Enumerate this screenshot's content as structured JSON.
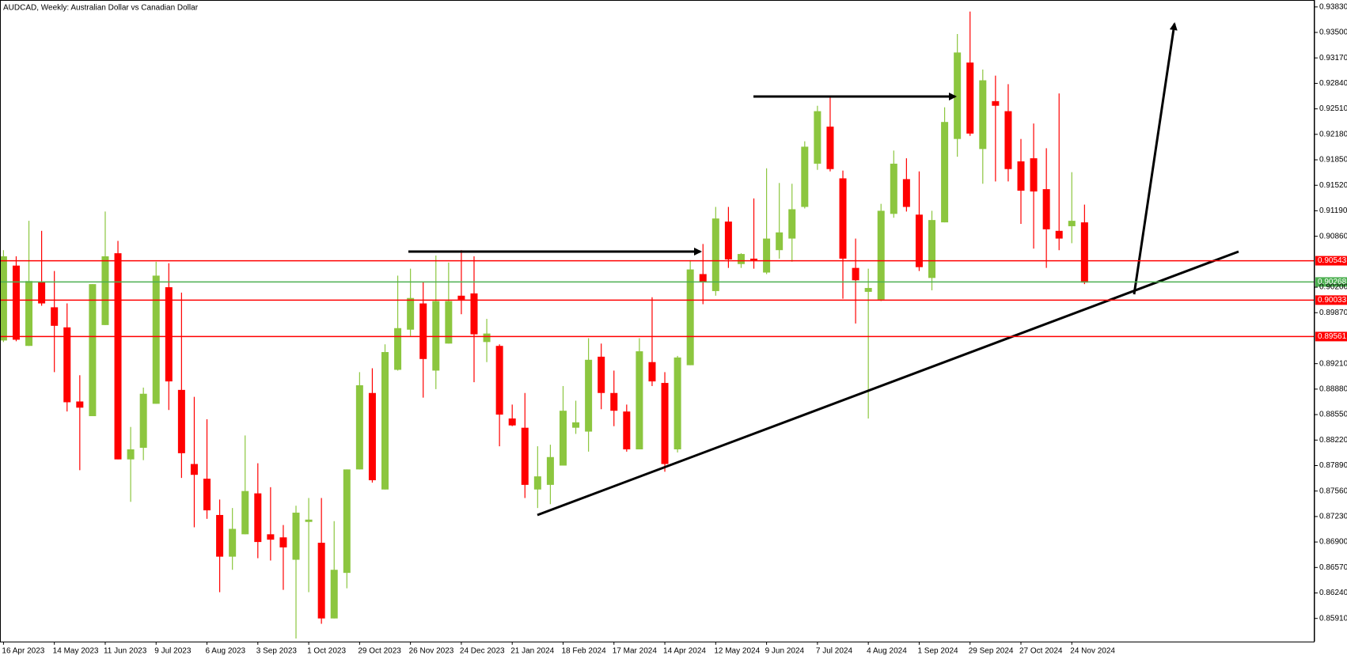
{
  "chart_data": {
    "type": "candlestick",
    "title": "AUDCAD, Weekly:  Australian Dollar vs Canadian Dollar",
    "categories": [
      "16 Apr 2023",
      null,
      null,
      null,
      "14 May 2023",
      null,
      null,
      null,
      "11 Jun 2023",
      null,
      null,
      null,
      "9 Jul 2023",
      null,
      null,
      null,
      "6 Aug 2023",
      null,
      null,
      null,
      "3 Sep 2023",
      null,
      null,
      null,
      "1 Oct 2023",
      null,
      null,
      null,
      "29 Oct 2023",
      null,
      null,
      null,
      "26 Nov 2023",
      null,
      null,
      null,
      "24 Dec 2023",
      null,
      null,
      null,
      "21 Jan 2024",
      null,
      null,
      null,
      "18 Feb 2024",
      null,
      null,
      null,
      "17 Mar 2024",
      null,
      null,
      null,
      "14 Apr 2024",
      null,
      null,
      null,
      "12 May 2024",
      null,
      null,
      null,
      "9 Jun 2024",
      null,
      null,
      null,
      "7 Jul 2024",
      null,
      null,
      null,
      "4 Aug 2024",
      null,
      null,
      null,
      "1 Sep 2024",
      null,
      null,
      null,
      "29 Sep 2024",
      null,
      null,
      null,
      "27 Oct 2024",
      null,
      null,
      null,
      "24 Nov 2024",
      null
    ],
    "open": [
      0.8951,
      0.9048,
      0.8944,
      0.9027,
      0.8994,
      0.8968,
      0.8872,
      0.8853,
      0.8971,
      0.9064,
      0.8797,
      0.8812,
      0.8869,
      0.902,
      0.8887,
      0.8791,
      0.8772,
      0.8725,
      0.8671,
      0.87,
      0.8753,
      0.87,
      0.8696,
      0.8667,
      0.8716,
      0.8689,
      0.8591,
      0.865,
      0.8784,
      0.8883,
      0.8758,
      0.8913,
      0.8965,
      0.8999,
      0.8912,
      0.8947,
      0.9009,
      0.9012,
      0.8949,
      0.8944,
      0.885,
      0.8838,
      0.8758,
      0.8764,
      0.8789,
      0.8838,
      0.8833,
      0.893,
      0.8883,
      0.8859,
      0.881,
      0.8923,
      0.8896,
      0.881,
      0.8919,
      0.9037,
      0.9015,
      0.9105,
      0.905,
      0.9057,
      0.9039,
      0.9068,
      0.9083,
      0.9124,
      0.918,
      0.9228,
      0.9161,
      0.9045,
      0.9014,
      0.9004,
      0.9115,
      0.916,
      0.9114,
      0.9032,
      0.9104,
      0.9212,
      0.9311,
      0.9199,
      0.9261,
      0.9248,
      0.9183,
      0.9187,
      0.9147,
      0.9093,
      0.9099,
      0.9104
    ],
    "high": [
      0.9068,
      0.906,
      0.9106,
      0.9093,
      0.9041,
      0.8999,
      0.8906,
      0.9024,
      0.9118,
      0.908,
      0.8839,
      0.889,
      0.9053,
      0.9051,
      0.9013,
      0.8878,
      0.8849,
      0.8745,
      0.8734,
      0.8828,
      0.8792,
      0.8761,
      0.8712,
      0.8737,
      0.8747,
      0.8747,
      0.8717,
      0.8784,
      0.891,
      0.8915,
      0.8946,
      0.9035,
      0.9044,
      0.9027,
      0.9061,
      0.9052,
      0.9068,
      0.906,
      0.8979,
      0.8946,
      0.8868,
      0.8883,
      0.8814,
      0.8816,
      0.8892,
      0.8873,
      0.8954,
      0.8947,
      0.8912,
      0.8868,
      0.8954,
      0.9007,
      0.891,
      0.8931,
      0.9055,
      0.9076,
      0.9124,
      0.9124,
      0.9064,
      0.9135,
      0.9174,
      0.9155,
      0.9154,
      0.9209,
      0.9255,
      0.9267,
      0.9171,
      0.9083,
      0.9044,
      0.9128,
      0.9197,
      0.9187,
      0.917,
      0.9119,
      0.9253,
      0.9348,
      0.9377,
      0.9302,
      0.9294,
      0.9283,
      0.9212,
      0.9232,
      0.92,
      0.9271,
      0.9169,
      0.9127
    ],
    "low": [
      0.8949,
      0.895,
      0.8944,
      0.8996,
      0.891,
      0.8859,
      0.8783,
      0.8853,
      0.8971,
      0.8797,
      0.8742,
      0.8796,
      0.8869,
      0.8861,
      0.8773,
      0.8709,
      0.872,
      0.8625,
      0.8654,
      0.87,
      0.8669,
      0.8666,
      0.8628,
      0.8565,
      0.8625,
      0.8584,
      0.8591,
      0.863,
      0.8784,
      0.8767,
      0.8758,
      0.8912,
      0.8957,
      0.8877,
      0.8888,
      0.8947,
      0.8985,
      0.8897,
      0.8923,
      0.8814,
      0.884,
      0.8747,
      0.8734,
      0.8739,
      0.8789,
      0.883,
      0.8807,
      0.8862,
      0.884,
      0.8807,
      0.881,
      0.8892,
      0.8781,
      0.8806,
      0.8919,
      0.8998,
      0.9009,
      0.9045,
      0.9045,
      0.9044,
      0.9037,
      0.9057,
      0.9053,
      0.9122,
      0.9172,
      0.917,
      0.9005,
      0.8973,
      0.885,
      0.9002,
      0.911,
      0.9118,
      0.9041,
      0.9016,
      0.9104,
      0.9189,
      0.9216,
      0.9154,
      0.9157,
      0.9157,
      0.9102,
      0.907,
      0.9045,
      0.9068,
      0.9077,
      0.9024
    ],
    "close": [
      0.906,
      0.8952,
      0.9028,
      0.8999,
      0.897,
      0.8871,
      0.8864,
      0.9024,
      0.906,
      0.8797,
      0.881,
      0.8882,
      0.9035,
      0.8898,
      0.8805,
      0.8777,
      0.8731,
      0.8671,
      0.8707,
      0.8756,
      0.869,
      0.8693,
      0.8683,
      0.8728,
      0.8719,
      0.8591,
      0.8654,
      0.8784,
      0.8893,
      0.877,
      0.8936,
      0.8967,
      0.9006,
      0.8927,
      0.9002,
      0.9002,
      0.9004,
      0.8959,
      0.896,
      0.8855,
      0.8841,
      0.8764,
      0.8775,
      0.88,
      0.886,
      0.8845,
      0.8926,
      0.8883,
      0.886,
      0.881,
      0.8937,
      0.8898,
      0.8791,
      0.8929,
      0.9043,
      0.9027,
      0.9109,
      0.9056,
      0.9063,
      0.9055,
      0.9083,
      0.9091,
      0.9121,
      0.9202,
      0.9248,
      0.9173,
      0.9057,
      0.9029,
      0.9019,
      0.9119,
      0.918,
      0.9124,
      0.9046,
      0.9107,
      0.9234,
      0.9324,
      0.9219,
      0.9288,
      0.9255,
      0.9173,
      0.9145,
      0.9144,
      0.9095,
      0.9083,
      0.9106,
      0.9026
    ],
    "up_color": "#8cc63f",
    "down_color": "#ff0000",
    "ylim": [
      0.8561,
      0.9392
    ],
    "yticks": [
      {
        "value": 0.9383,
        "label": "0.93830"
      },
      {
        "value": 0.935,
        "label": "0.93500"
      },
      {
        "value": 0.9317,
        "label": "0.93170"
      },
      {
        "value": 0.9284,
        "label": "0.92840"
      },
      {
        "value": 0.9251,
        "label": "0.92510"
      },
      {
        "value": 0.9218,
        "label": "0.92180"
      },
      {
        "value": 0.9185,
        "label": "0.91850"
      },
      {
        "value": 0.9152,
        "label": "0.91520"
      },
      {
        "value": 0.9119,
        "label": "0.91190"
      },
      {
        "value": 0.9086,
        "label": "0.90860"
      },
      {
        "value": 0.902,
        "label": "0.90200"
      },
      {
        "value": 0.8987,
        "label": "0.89870"
      },
      {
        "value": 0.8921,
        "label": "0.89210"
      },
      {
        "value": 0.8888,
        "label": "0.88880"
      },
      {
        "value": 0.8855,
        "label": "0.88550"
      },
      {
        "value": 0.8822,
        "label": "0.88220"
      },
      {
        "value": 0.8789,
        "label": "0.87890"
      },
      {
        "value": 0.8756,
        "label": "0.87560"
      },
      {
        "value": 0.8723,
        "label": "0.87230"
      },
      {
        "value": 0.869,
        "label": "0.86900"
      },
      {
        "value": 0.8657,
        "label": "0.86570"
      },
      {
        "value": 0.8624,
        "label": "0.86240"
      },
      {
        "value": 0.8591,
        "label": "0.85910"
      }
    ],
    "levels": [
      0.90543,
      0.90268,
      0.90033,
      0.89561
    ],
    "level_colors": [
      "#ff0000",
      "#4caf50",
      "#ff0000",
      "#ff0000"
    ]
  }
}
